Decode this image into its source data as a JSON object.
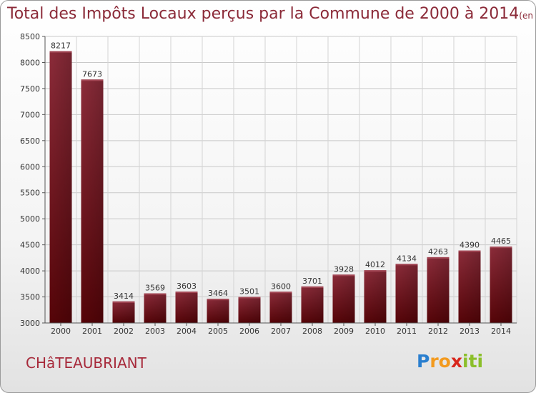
{
  "header": {
    "title": "Total des Impôts Locaux perçus par la Commune de 2000 à 2014",
    "subtitle": "(en milliers d'€)"
  },
  "footer": {
    "commune": "CHâTEAUBRIANT",
    "logo_letters": [
      "P",
      "r",
      "o",
      "x",
      "i",
      "t",
      "i"
    ],
    "logo_colors": [
      "#2a7fcf",
      "#f39a1e",
      "#f39a1e",
      "#d8261c",
      "#8bbf2a",
      "#8bbf2a",
      "#8bbf2a"
    ]
  },
  "chart_data": {
    "type": "bar",
    "categories": [
      "2000",
      "2001",
      "2002",
      "2003",
      "2004",
      "2005",
      "2006",
      "2007",
      "2008",
      "2009",
      "2010",
      "2011",
      "2012",
      "2013",
      "2014"
    ],
    "values": [
      8217,
      7673,
      3414,
      3569,
      3603,
      3464,
      3501,
      3600,
      3701,
      3928,
      4012,
      4134,
      4263,
      4390,
      4465
    ],
    "ylim": [
      3000,
      8500
    ],
    "yticks": [
      3000,
      3500,
      4000,
      4500,
      5000,
      5500,
      6000,
      6500,
      7000,
      7500,
      8000,
      8500
    ],
    "grid": true,
    "bar_color": "#7a1420",
    "show_data_labels": true
  }
}
